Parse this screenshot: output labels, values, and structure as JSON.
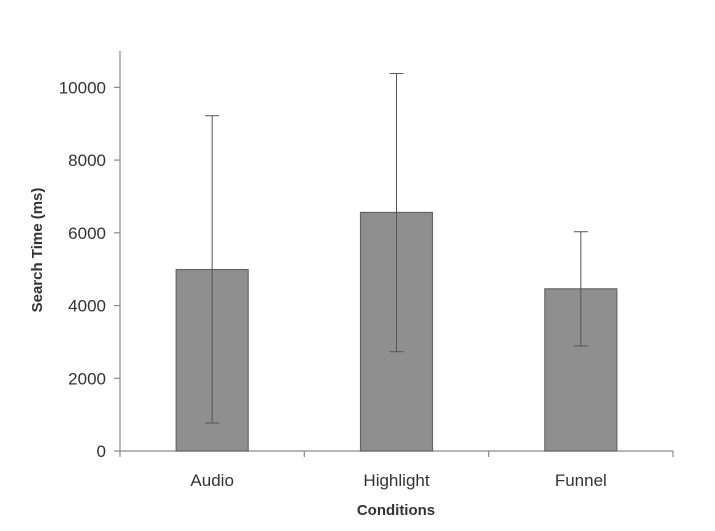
{
  "chart_data": {
    "type": "bar",
    "title": "",
    "xlabel": "Conditions",
    "ylabel": "Search Time (ms)",
    "categories": [
      "Audio",
      "Highlight",
      "Funnel"
    ],
    "values": [
      4990,
      6560,
      4460
    ],
    "error_bars": {
      "upper": [
        9220,
        10380,
        6030
      ],
      "lower": [
        770,
        2730,
        2890
      ]
    },
    "ylim": [
      0,
      11000
    ],
    "yticks": [
      0,
      2000,
      4000,
      6000,
      8000,
      10000
    ],
    "grid": false,
    "legend": "none",
    "colors": {
      "bar_fill": "#8f8f8f",
      "bar_stroke": "#666666",
      "axis": "#8a8a8a",
      "text": "#333333",
      "error_bar": "#555555"
    }
  }
}
